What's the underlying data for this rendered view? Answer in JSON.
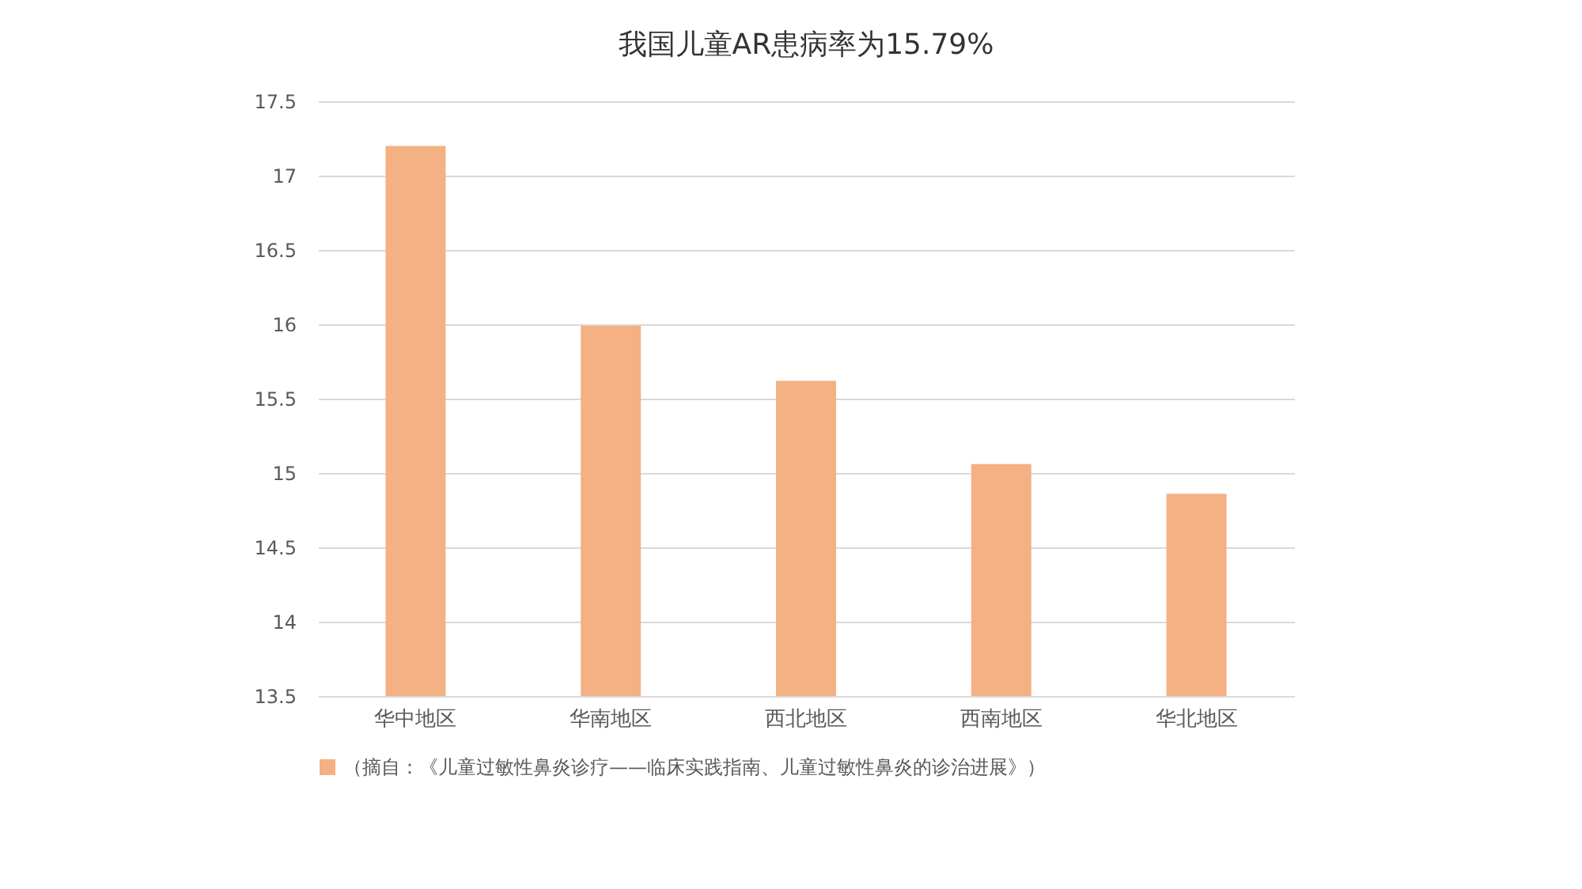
{
  "chart_data": {
    "type": "bar",
    "title": "我国儿童AR患病率为15.79%",
    "categories": [
      "华中地区",
      "华南地区",
      "西北地区",
      "西南地区",
      "华北地区"
    ],
    "series": [
      {
        "name": "（摘自：《儿童过敏性鼻炎诊疗——临床实践指南、儿童过敏性鼻炎的诊治进展》）",
        "color": "#f4b183",
        "values": [
          17.2,
          15.99,
          15.62,
          15.06,
          14.86
        ]
      }
    ],
    "ylim": [
      13.5,
      17.5
    ],
    "yticks": [
      13.5,
      14,
      14.5,
      15,
      15.5,
      16,
      16.5,
      17,
      17.5
    ],
    "grid": "y",
    "legend": "bottom"
  }
}
